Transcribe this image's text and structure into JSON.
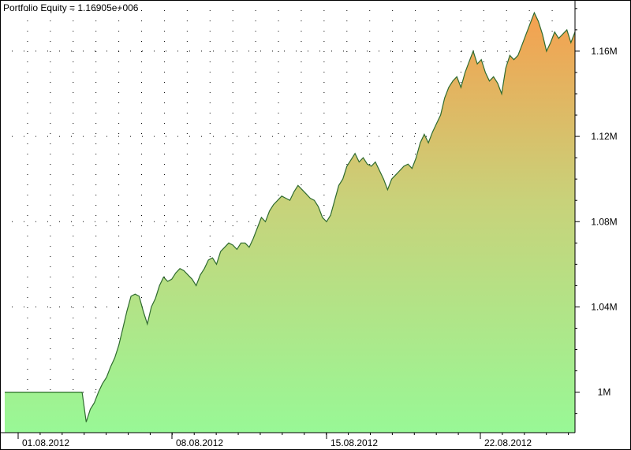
{
  "chart_data": {
    "type": "area",
    "title": "Portfolio Equity = 1.16905e+006",
    "xlabel": "",
    "ylabel": "",
    "x_tick_labels": [
      "01.08.2012",
      "08.08.2012",
      "15.08.2012",
      "22.08.2012"
    ],
    "y_tick_labels": [
      "1M",
      "1.04M",
      "1.08M",
      "1.12M",
      "1.16M"
    ],
    "y_tick_values": [
      1000000,
      1040000,
      1080000,
      1120000,
      1160000
    ],
    "ylim": [
      981000,
      1184000
    ],
    "grid": true,
    "legend": "none",
    "series": [
      {
        "values": [
          1000000,
          1000000,
          1000000,
          1000000,
          1000000,
          1000000,
          1000000,
          1000000,
          1000000,
          1000000,
          1000000,
          1000000,
          1000000,
          1000000,
          1000000,
          1000000,
          1000000,
          1000000,
          1000000,
          1000000,
          986000,
          992000,
          995000,
          1000000,
          1004000,
          1007000,
          1012000,
          1016000,
          1022000,
          1030000,
          1038000,
          1045000,
          1046000,
          1045000,
          1038000,
          1032000,
          1040000,
          1044000,
          1050000,
          1054000,
          1052000,
          1053000,
          1056000,
          1058000,
          1057000,
          1055000,
          1053000,
          1050000,
          1055000,
          1058000,
          1062000,
          1063000,
          1060000,
          1066000,
          1068000,
          1070000,
          1069000,
          1067000,
          1070000,
          1070000,
          1068000,
          1072000,
          1077000,
          1082000,
          1080000,
          1085000,
          1088000,
          1090000,
          1092000,
          1091000,
          1090000,
          1094000,
          1097000,
          1095000,
          1093000,
          1091000,
          1090000,
          1087000,
          1082000,
          1080000,
          1083000,
          1090000,
          1097000,
          1100000,
          1106000,
          1109000,
          1112000,
          1108000,
          1110000,
          1107000,
          1106000,
          1108000,
          1104000,
          1100000,
          1095000,
          1100000,
          1102000,
          1104000,
          1106000,
          1107000,
          1105000,
          1110000,
          1117000,
          1121000,
          1117000,
          1122000,
          1126000,
          1130000,
          1138000,
          1143000,
          1146000,
          1148000,
          1143000,
          1150000,
          1155000,
          1160000,
          1154000,
          1156000,
          1150000,
          1146000,
          1148000,
          1145000,
          1140000,
          1152000,
          1158000,
          1156000,
          1158000,
          1163000,
          1168000,
          1173000,
          1178000,
          1174000,
          1168000,
          1160000,
          1164000,
          1169000,
          1166000,
          1168000,
          1170000,
          1164000,
          1169000
        ]
      }
    ]
  }
}
